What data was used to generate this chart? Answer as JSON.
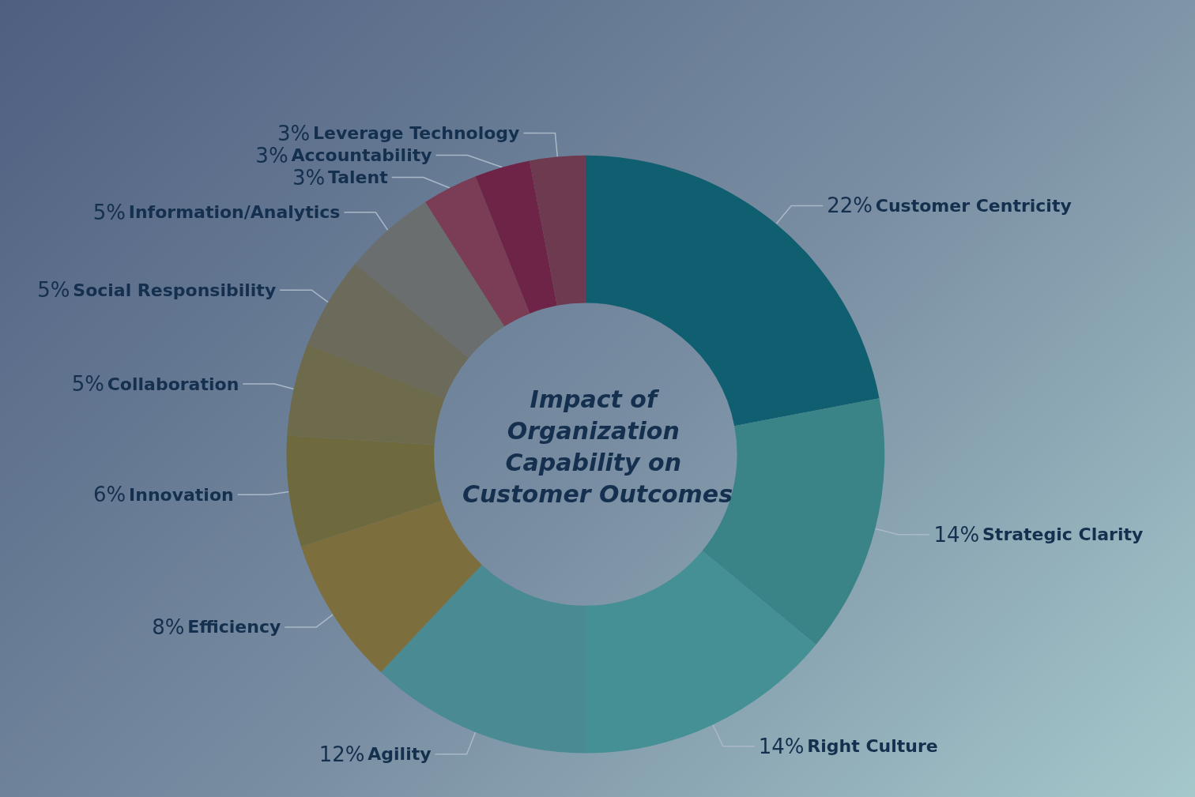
{
  "chart_data": {
    "type": "donut",
    "title": "Impact of Organization Capability on Customer Outcomes",
    "categories": [
      "Customer Centricity",
      "Strategic Clarity",
      "Right Culture",
      "Agility",
      "Efficiency",
      "Innovation",
      "Collaboration",
      "Social Responsibility",
      "Information/Analytics",
      "Talent",
      "Accountability",
      "Leverage Technology"
    ],
    "values": [
      22,
      14,
      14,
      12,
      8,
      6,
      5,
      5,
      5,
      3,
      3,
      3
    ],
    "value_labels": [
      "22%",
      "14%",
      "14%",
      "12%",
      "8%",
      "6%",
      "5%",
      "5%",
      "5%",
      "3%",
      "3%",
      "3%"
    ],
    "colors": [
      "#0f5f70",
      "#3a8387",
      "#449094",
      "#4a8a92",
      "#7d6e3e",
      "#6e6a3e",
      "#6e6a4c",
      "#6c6a5a",
      "#6a6e6e",
      "#7a3d55",
      "#6d2446",
      "#6e3a50"
    ]
  }
}
